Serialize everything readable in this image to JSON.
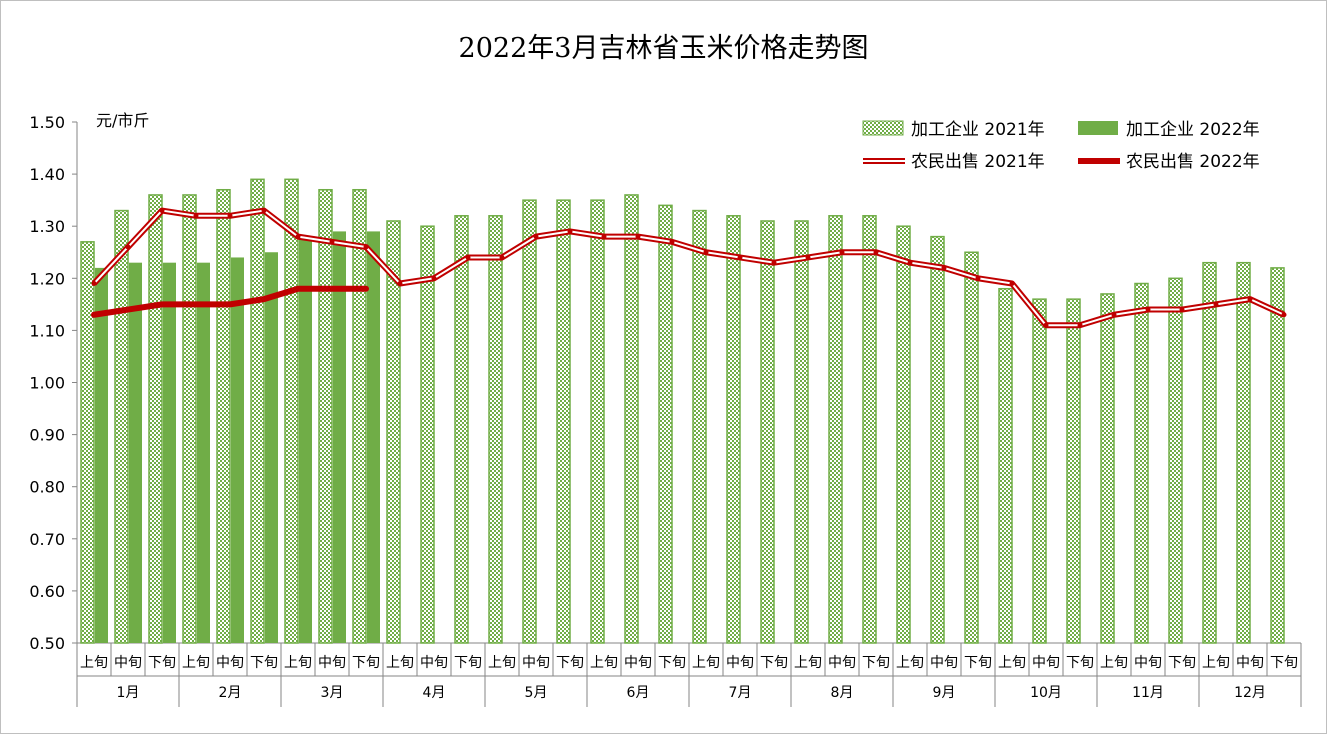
{
  "chart_data": {
    "type": "bar+line",
    "title": "2022年3月吉林省玉米价格走势图",
    "ylabel": "元/市斤",
    "ylim": [
      0.5,
      1.5
    ],
    "yticks": [
      "0.50",
      "0.60",
      "0.70",
      "0.80",
      "0.90",
      "1.00",
      "1.10",
      "1.20",
      "1.30",
      "1.40",
      "1.50"
    ],
    "ten_day_labels": [
      "上旬",
      "中旬",
      "下旬"
    ],
    "months": [
      "1月",
      "2月",
      "3月",
      "4月",
      "5月",
      "6月",
      "7月",
      "8月",
      "9月",
      "10月",
      "11月",
      "12月"
    ],
    "legend_position": "top-right",
    "series": [
      {
        "name": "加工企业 2021年",
        "kind": "bar-hatched",
        "color": "#70ad47",
        "values": [
          1.27,
          1.33,
          1.36,
          1.36,
          1.37,
          1.39,
          1.39,
          1.37,
          1.37,
          1.31,
          1.3,
          1.32,
          1.32,
          1.35,
          1.35,
          1.35,
          1.36,
          1.34,
          1.33,
          1.32,
          1.31,
          1.31,
          1.32,
          1.32,
          1.3,
          1.28,
          1.25,
          1.18,
          1.16,
          1.16,
          1.17,
          1.19,
          1.2,
          1.23,
          1.23,
          1.22
        ]
      },
      {
        "name": "加工企业 2022年",
        "kind": "bar",
        "color": "#70ad47",
        "values": [
          1.22,
          1.23,
          1.23,
          1.23,
          1.24,
          1.25,
          1.28,
          1.29,
          1.29
        ]
      },
      {
        "name": "农民出售 2021年",
        "kind": "line-double",
        "color": "#c00000",
        "values": [
          1.19,
          1.26,
          1.33,
          1.32,
          1.32,
          1.33,
          1.28,
          1.27,
          1.26,
          1.19,
          1.2,
          1.24,
          1.24,
          1.28,
          1.29,
          1.28,
          1.28,
          1.27,
          1.25,
          1.24,
          1.23,
          1.24,
          1.25,
          1.25,
          1.23,
          1.22,
          1.2,
          1.19,
          1.11,
          1.11,
          1.13,
          1.14,
          1.14,
          1.15,
          1.16,
          1.13
        ]
      },
      {
        "name": "农民出售 2022年",
        "kind": "line-thick",
        "color": "#c00000",
        "values": [
          1.13,
          1.14,
          1.15,
          1.15,
          1.15,
          1.16,
          1.18,
          1.18,
          1.18
        ]
      }
    ]
  }
}
